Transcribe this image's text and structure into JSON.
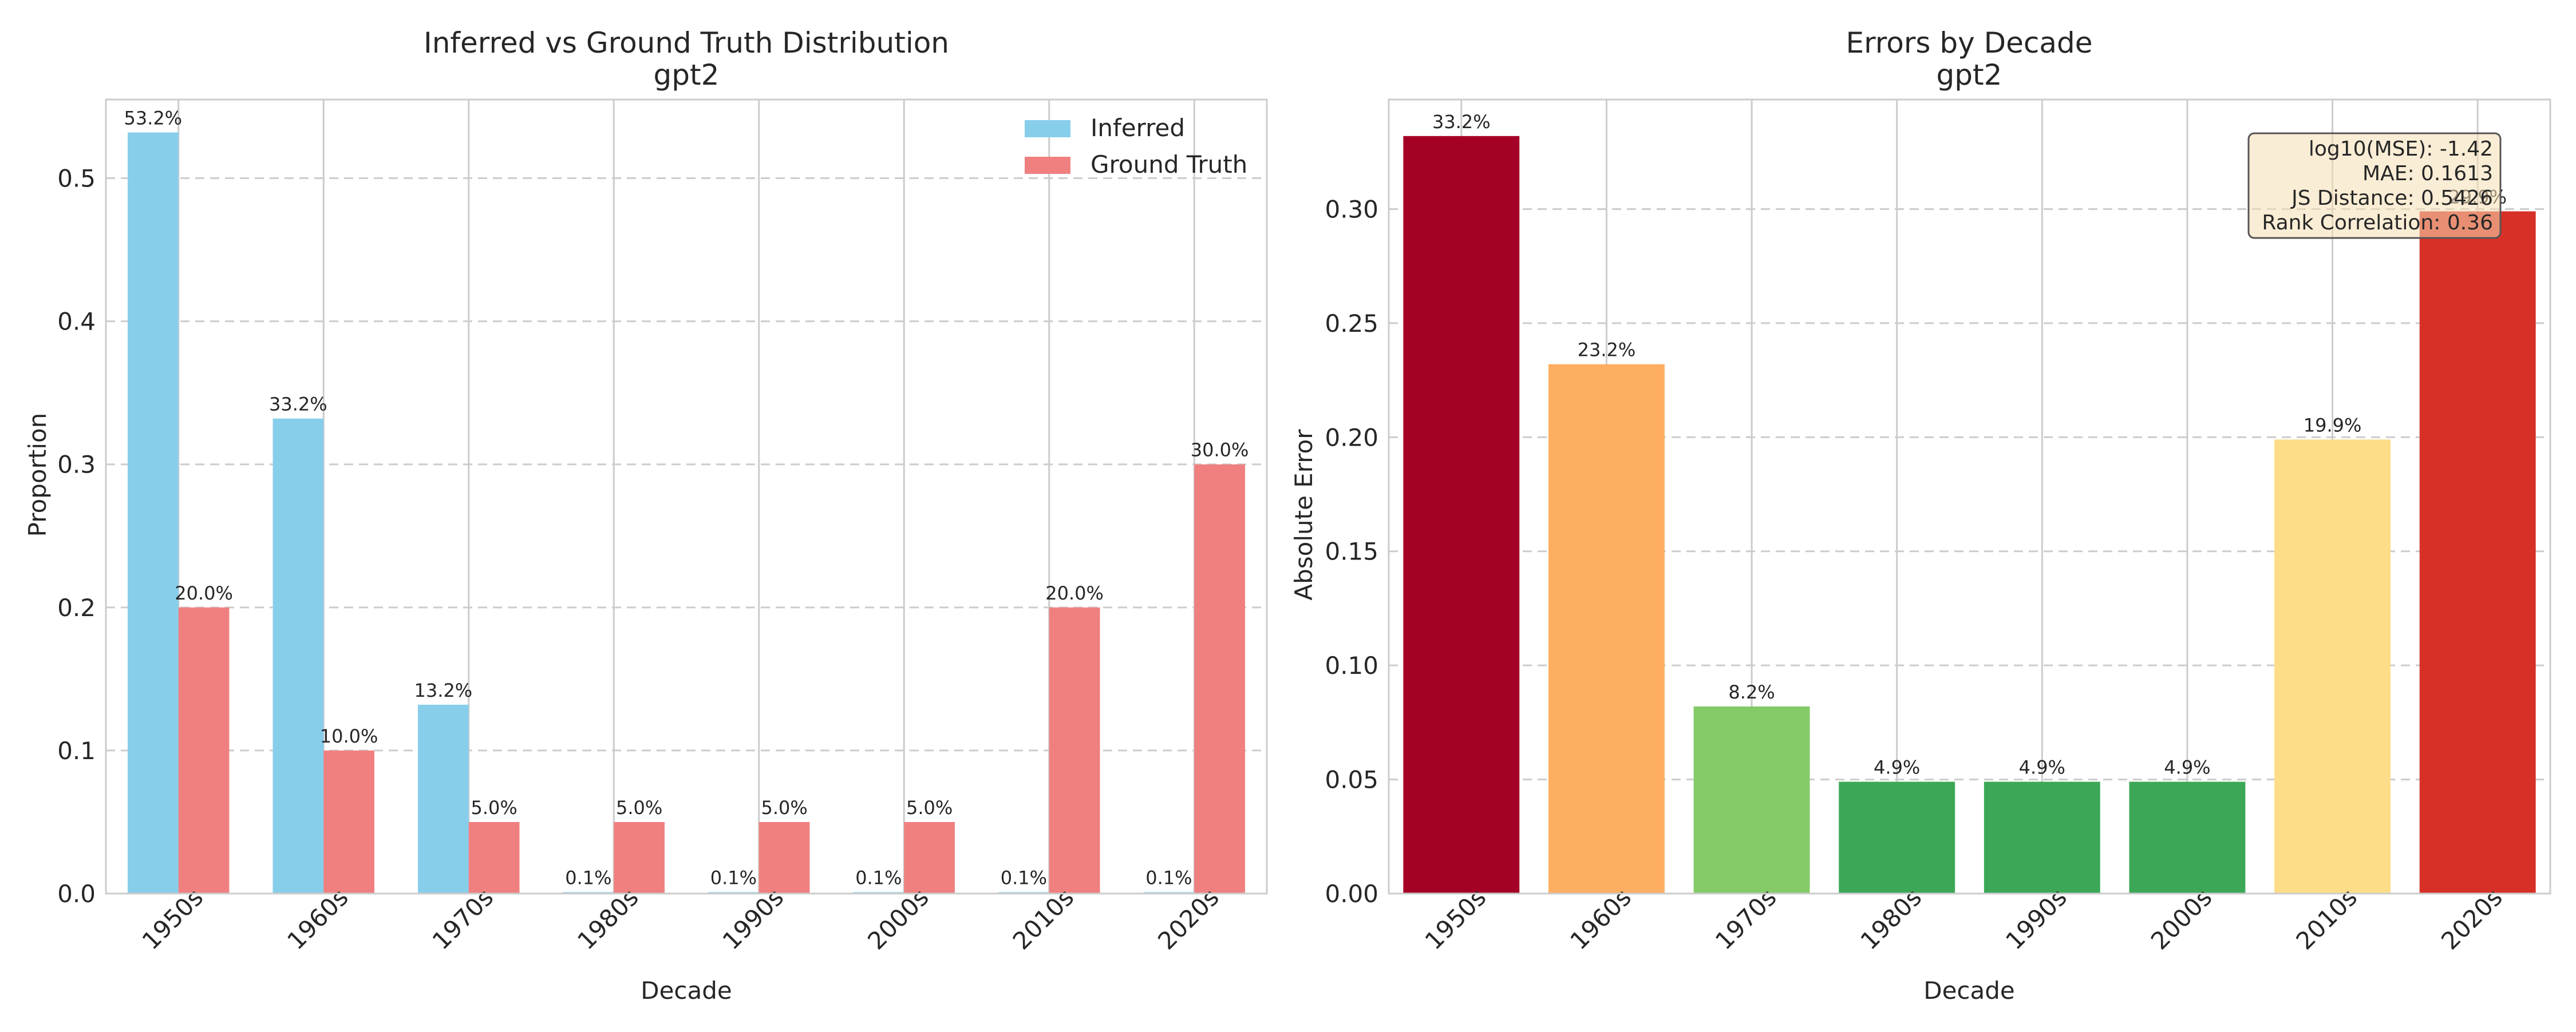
{
  "chart_data": [
    {
      "type": "bar",
      "title": "Inferred vs Ground Truth Distribution",
      "subtitle": "gpt2",
      "xlabel": "Decade",
      "ylabel": "Proportion",
      "categories": [
        "1950s",
        "1960s",
        "1970s",
        "1980s",
        "1990s",
        "2000s",
        "2010s",
        "2020s"
      ],
      "ylim": [
        0,
        0.555
      ],
      "yticks": [
        0.0,
        0.1,
        0.2,
        0.3,
        0.4,
        0.5
      ],
      "ytick_labels": [
        "0.0",
        "0.1",
        "0.2",
        "0.3",
        "0.4",
        "0.5"
      ],
      "grid": true,
      "legend": "top-right",
      "series": [
        {
          "name": "Inferred",
          "color": "#87ceeb",
          "values": [
            0.532,
            0.332,
            0.132,
            0.001,
            0.001,
            0.001,
            0.001,
            0.001
          ],
          "labels": [
            "53.2%",
            "33.2%",
            "13.2%",
            "0.1%",
            "0.1%",
            "0.1%",
            "0.1%",
            "0.1%"
          ]
        },
        {
          "name": "Ground Truth",
          "color": "#f08080",
          "values": [
            0.2,
            0.1,
            0.05,
            0.05,
            0.05,
            0.05,
            0.2,
            0.3
          ],
          "labels": [
            "20.0%",
            "10.0%",
            "5.0%",
            "5.0%",
            "5.0%",
            "5.0%",
            "20.0%",
            "30.0%"
          ]
        }
      ]
    },
    {
      "type": "bar",
      "title": "Errors by Decade",
      "subtitle": "gpt2",
      "xlabel": "Decade",
      "ylabel": "Absolute Error",
      "categories": [
        "1950s",
        "1960s",
        "1970s",
        "1980s",
        "1990s",
        "2000s",
        "2010s",
        "2020s"
      ],
      "ylim": [
        0,
        0.348
      ],
      "yticks": [
        0.0,
        0.05,
        0.1,
        0.15,
        0.2,
        0.25,
        0.3
      ],
      "ytick_labels": [
        "0.00",
        "0.05",
        "0.10",
        "0.15",
        "0.20",
        "0.25",
        "0.30"
      ],
      "grid": true,
      "values": [
        0.332,
        0.232,
        0.082,
        0.049,
        0.049,
        0.049,
        0.199,
        0.299
      ],
      "labels": [
        "33.2%",
        "23.2%",
        "8.2%",
        "4.9%",
        "4.9%",
        "4.9%",
        "19.9%",
        "29.9%"
      ],
      "colors": [
        "#a50026",
        "#fdae61",
        "#84ca66",
        "#3ca857",
        "#3ca857",
        "#3ca857",
        "#fedd89",
        "#d73027"
      ],
      "annotation": {
        "lines": [
          "log10(MSE): -1.42",
          "MAE: 0.1613",
          "JS Distance: 0.5426",
          "Rank Correlation: 0.36"
        ],
        "placement": "top-right",
        "background": "#f5deb3",
        "border": "#555555"
      }
    }
  ]
}
